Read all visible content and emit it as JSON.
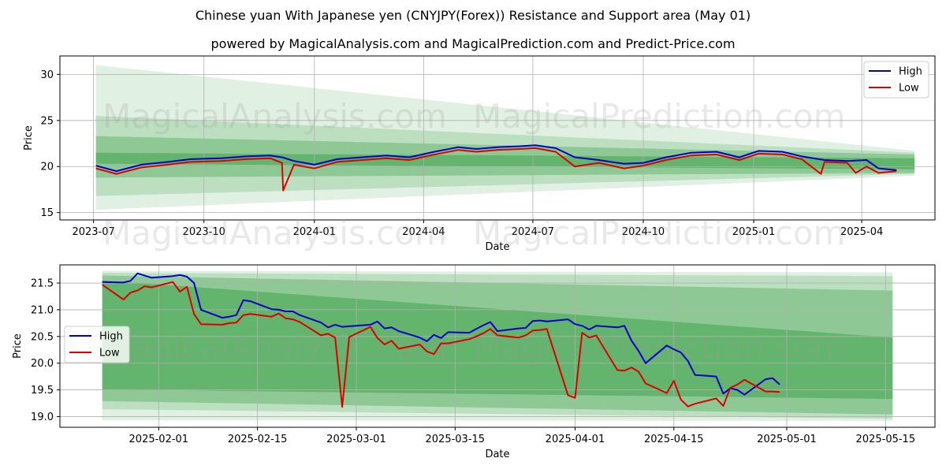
{
  "title": "Chinese yuan With Japanese yen (CNYJPY(Forex)) Resistance and Support area (May 01)",
  "subtitle": "powered by MagicalAnalysis.com and MagicalPrediction.com and Predict-Price.com",
  "watermarks": [
    "MagicalAnalysis.com",
    "MagicalPrediction.com"
  ],
  "colors": {
    "high": "#0000cc",
    "low": "#dd0000",
    "band": "#2e9b3a",
    "grid": "#b0b0b0"
  },
  "chart_data": [
    {
      "type": "line",
      "xlabel": "Date",
      "ylabel": "Price",
      "x_ticks": [
        "2023-07",
        "2023-10",
        "2024-01",
        "2024-04",
        "2024-07",
        "2024-10",
        "2025-01",
        "2025-04"
      ],
      "y_ticks": [
        "15",
        "20",
        "25",
        "30"
      ],
      "ylim": [
        14.2,
        32.0
      ],
      "grid": true,
      "legend": "top-right",
      "legend_entries": [
        "High",
        "Low"
      ],
      "bands": {
        "x": [
          "2023-07-03",
          "2025-05-15"
        ],
        "outer": {
          "upper": [
            31.0,
            21.7
          ],
          "lower": [
            15.3,
            19.0
          ]
        },
        "middle": {
          "upper": [
            25.5,
            21.5
          ],
          "lower": [
            16.8,
            19.2
          ]
        },
        "inner": {
          "upper": [
            23.3,
            21.3
          ],
          "lower": [
            18.8,
            19.3
          ]
        },
        "core": {
          "upper": [
            21.5,
            20.9
          ],
          "lower": [
            20.3,
            19.7
          ]
        }
      },
      "series": [
        {
          "name": "High",
          "x": [
            "2023-07-03",
            "2023-07-20",
            "2023-08-10",
            "2023-09-01",
            "2023-09-20",
            "2023-10-15",
            "2023-11-05",
            "2023-11-25",
            "2023-12-05",
            "2023-12-15",
            "2024-01-01",
            "2024-01-20",
            "2024-02-10",
            "2024-03-01",
            "2024-03-20",
            "2024-04-10",
            "2024-04-30",
            "2024-05-15",
            "2024-06-01",
            "2024-06-20",
            "2024-07-03",
            "2024-07-20",
            "2024-08-05",
            "2024-08-25",
            "2024-09-15",
            "2024-10-01",
            "2024-10-20",
            "2024-11-10",
            "2024-12-01",
            "2024-12-20",
            "2025-01-05",
            "2025-01-25",
            "2025-02-10",
            "2025-03-01",
            "2025-03-20",
            "2025-04-05",
            "2025-04-15",
            "2025-04-30"
          ],
          "values": [
            20.1,
            19.5,
            20.2,
            20.5,
            20.8,
            20.9,
            21.1,
            21.2,
            21.0,
            20.6,
            20.2,
            20.8,
            21.0,
            21.2,
            21.0,
            21.6,
            22.1,
            21.9,
            22.1,
            22.2,
            22.3,
            22.0,
            21.0,
            20.7,
            20.3,
            20.4,
            21.0,
            21.5,
            21.6,
            21.0,
            21.7,
            21.6,
            21.1,
            20.7,
            20.6,
            20.7,
            19.8,
            19.6
          ]
        },
        {
          "name": "Low",
          "x": [
            "2023-07-03",
            "2023-07-20",
            "2023-08-10",
            "2023-09-01",
            "2023-09-20",
            "2023-10-15",
            "2023-11-05",
            "2023-11-25",
            "2023-12-05",
            "2023-12-06",
            "2023-12-15",
            "2024-01-01",
            "2024-01-20",
            "2024-02-10",
            "2024-03-01",
            "2024-03-20",
            "2024-04-10",
            "2024-04-30",
            "2024-05-15",
            "2024-06-01",
            "2024-06-20",
            "2024-07-03",
            "2024-07-20",
            "2024-08-05",
            "2024-08-25",
            "2024-09-15",
            "2024-10-01",
            "2024-10-20",
            "2024-11-10",
            "2024-12-01",
            "2024-12-20",
            "2025-01-05",
            "2025-01-25",
            "2025-02-10",
            "2025-02-26",
            "2025-03-01",
            "2025-03-20",
            "2025-03-27",
            "2025-04-05",
            "2025-04-15",
            "2025-04-30"
          ],
          "values": [
            19.8,
            19.2,
            19.9,
            20.2,
            20.5,
            20.6,
            20.8,
            20.9,
            20.4,
            17.4,
            20.2,
            19.8,
            20.5,
            20.7,
            20.9,
            20.7,
            21.3,
            21.8,
            21.6,
            21.8,
            21.9,
            22.0,
            21.6,
            20.0,
            20.4,
            19.8,
            20.1,
            20.7,
            21.2,
            21.3,
            20.7,
            21.4,
            21.3,
            20.8,
            19.2,
            20.5,
            20.4,
            19.3,
            20.0,
            19.3,
            19.5
          ]
        }
      ]
    },
    {
      "type": "line",
      "xlabel": "Date",
      "ylabel": "Price",
      "x_ticks": [
        "2025-02-01",
        "2025-02-15",
        "2025-03-01",
        "2025-03-15",
        "2025-04-01",
        "2025-04-15",
        "2025-05-01",
        "2025-05-15"
      ],
      "y_ticks": [
        "19.0",
        "19.5",
        "20.0",
        "20.5",
        "21.0",
        "21.5"
      ],
      "ylim": [
        18.8,
        21.84
      ],
      "grid": true,
      "legend": "center-left",
      "legend_entries": [
        "High",
        "Low"
      ],
      "bands": {
        "x": [
          "2025-01-24",
          "2025-05-16"
        ],
        "outer": {
          "upper": [
            21.73,
            21.7
          ],
          "lower": [
            18.93,
            18.92
          ]
        },
        "middle": {
          "upper": [
            21.69,
            21.63
          ],
          "lower": [
            19.14,
            18.96
          ]
        },
        "inner": {
          "upper": [
            21.64,
            21.36
          ],
          "lower": [
            19.29,
            19.04
          ]
        },
        "core": {
          "upper": [
            21.55,
            20.48
          ],
          "lower": [
            19.51,
            19.33
          ]
        }
      },
      "series": [
        {
          "name": "High",
          "x": [
            "2025-01-24",
            "2025-01-27",
            "2025-01-28",
            "2025-01-29",
            "2025-01-30",
            "2025-01-31",
            "2025-02-03",
            "2025-02-04",
            "2025-02-05",
            "2025-02-06",
            "2025-02-07",
            "2025-02-10",
            "2025-02-11",
            "2025-02-12",
            "2025-02-13",
            "2025-02-14",
            "2025-02-17",
            "2025-02-18",
            "2025-02-19",
            "2025-02-20",
            "2025-02-21",
            "2025-02-24",
            "2025-02-25",
            "2025-02-26",
            "2025-02-27",
            "2025-02-28",
            "2025-03-03",
            "2025-03-04",
            "2025-03-05",
            "2025-03-06",
            "2025-03-07",
            "2025-03-10",
            "2025-03-11",
            "2025-03-12",
            "2025-03-13",
            "2025-03-14",
            "2025-03-17",
            "2025-03-18",
            "2025-03-19",
            "2025-03-20",
            "2025-03-21",
            "2025-03-24",
            "2025-03-25",
            "2025-03-26",
            "2025-03-27",
            "2025-03-28",
            "2025-03-31",
            "2025-04-01",
            "2025-04-02",
            "2025-04-03",
            "2025-04-04",
            "2025-04-07",
            "2025-04-08",
            "2025-04-09",
            "2025-04-10",
            "2025-04-11",
            "2025-04-14",
            "2025-04-15",
            "2025-04-16",
            "2025-04-17",
            "2025-04-18",
            "2025-04-21",
            "2025-04-22",
            "2025-04-23",
            "2025-04-24",
            "2025-04-25",
            "2025-04-28",
            "2025-04-29",
            "2025-04-30"
          ],
          "values": [
            21.52,
            21.51,
            21.54,
            21.68,
            21.64,
            21.6,
            21.63,
            21.65,
            21.62,
            21.5,
            21.0,
            20.85,
            20.87,
            20.9,
            21.18,
            21.16,
            21.01,
            21.0,
            20.97,
            20.97,
            20.9,
            20.76,
            20.67,
            20.72,
            20.68,
            20.69,
            20.72,
            20.78,
            20.65,
            20.67,
            20.6,
            20.48,
            20.41,
            20.53,
            20.47,
            20.58,
            20.57,
            20.64,
            20.71,
            20.77,
            20.6,
            20.65,
            20.66,
            20.79,
            20.8,
            20.78,
            20.82,
            20.73,
            20.7,
            20.63,
            20.7,
            20.67,
            20.7,
            20.42,
            20.23,
            20.0,
            20.33,
            20.26,
            20.2,
            20.04,
            19.78,
            19.75,
            19.43,
            19.53,
            19.5,
            19.41,
            19.7,
            19.72,
            19.6
          ]
        },
        {
          "name": "Low",
          "x": [
            "2025-01-24",
            "2025-01-27",
            "2025-01-28",
            "2025-01-29",
            "2025-01-30",
            "2025-01-31",
            "2025-02-03",
            "2025-02-04",
            "2025-02-05",
            "2025-02-06",
            "2025-02-07",
            "2025-02-10",
            "2025-02-11",
            "2025-02-12",
            "2025-02-13",
            "2025-02-14",
            "2025-02-17",
            "2025-02-18",
            "2025-02-19",
            "2025-02-20",
            "2025-02-21",
            "2025-02-24",
            "2025-02-25",
            "2025-02-26",
            "2025-02-27",
            "2025-02-28",
            "2025-03-03",
            "2025-03-04",
            "2025-03-05",
            "2025-03-06",
            "2025-03-07",
            "2025-03-10",
            "2025-03-11",
            "2025-03-12",
            "2025-03-13",
            "2025-03-14",
            "2025-03-17",
            "2025-03-18",
            "2025-03-19",
            "2025-03-20",
            "2025-03-21",
            "2025-03-24",
            "2025-03-25",
            "2025-03-26",
            "2025-03-27",
            "2025-03-28",
            "2025-03-31",
            "2025-04-01",
            "2025-04-02",
            "2025-04-03",
            "2025-04-04",
            "2025-04-07",
            "2025-04-08",
            "2025-04-09",
            "2025-04-10",
            "2025-04-11",
            "2025-04-14",
            "2025-04-15",
            "2025-04-16",
            "2025-04-17",
            "2025-04-18",
            "2025-04-21",
            "2025-04-22",
            "2025-04-23",
            "2025-04-24",
            "2025-04-25",
            "2025-04-28",
            "2025-04-29",
            "2025-04-30"
          ],
          "values": [
            21.47,
            21.19,
            21.32,
            21.36,
            21.44,
            21.42,
            21.52,
            21.34,
            21.43,
            20.92,
            20.73,
            20.72,
            20.75,
            20.76,
            20.9,
            20.92,
            20.87,
            20.93,
            20.84,
            20.82,
            20.77,
            20.52,
            20.55,
            20.48,
            19.18,
            20.49,
            20.68,
            20.47,
            20.35,
            20.42,
            20.27,
            20.35,
            20.22,
            20.17,
            20.37,
            20.37,
            20.45,
            20.5,
            20.56,
            20.64,
            20.52,
            20.48,
            20.52,
            20.61,
            20.62,
            20.64,
            19.4,
            19.35,
            20.57,
            20.48,
            20.52,
            19.87,
            19.86,
            19.92,
            19.84,
            19.62,
            19.44,
            19.67,
            19.32,
            19.19,
            19.24,
            19.34,
            19.2,
            19.54,
            19.6,
            19.69,
            19.47,
            19.47,
            19.46
          ]
        }
      ]
    }
  ]
}
